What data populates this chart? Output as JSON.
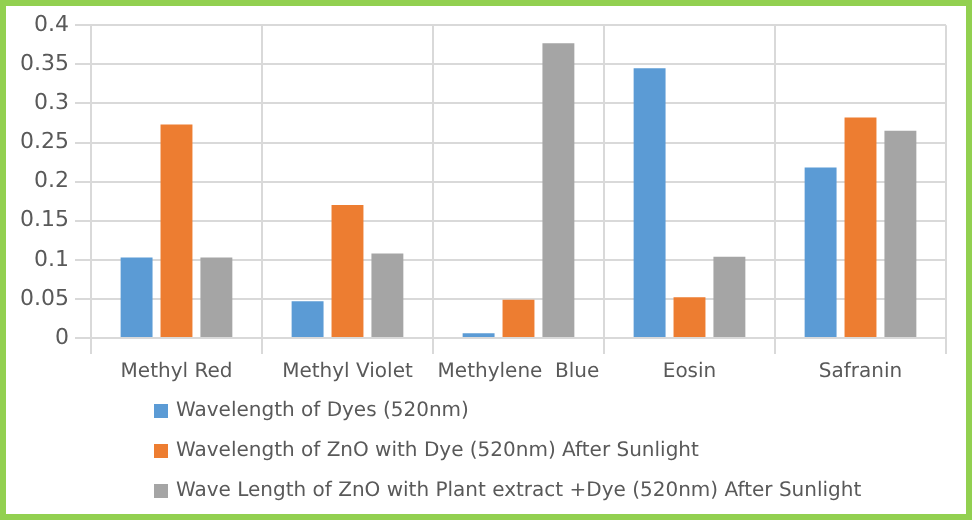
{
  "chart_data": {
    "type": "bar",
    "categories": [
      "Methyl Red",
      "Methyl Violet",
      "Methylene  Blue",
      "Eosin",
      "Safranin"
    ],
    "series": [
      {
        "name": "Wavelength of Dyes (520nm)",
        "color": "#5b9bd5",
        "values": [
          0.103,
          0.047,
          0.006,
          0.345,
          0.218
        ]
      },
      {
        "name": "Wavelength of ZnO with Dye (520nm) After Sunlight",
        "color": "#ed7d31",
        "values": [
          0.273,
          0.17,
          0.049,
          0.052,
          0.282
        ]
      },
      {
        "name": "Wave Length of ZnO with Plant extract +Dye (520nm) After Sunlight",
        "color": "#a5a5a5",
        "values": [
          0.103,
          0.108,
          0.377,
          0.104,
          0.265
        ]
      }
    ],
    "ylim": [
      0,
      0.4
    ],
    "yticks": [
      0,
      0.05,
      0.1,
      0.15,
      0.2,
      0.25,
      0.3,
      0.35,
      0.4
    ],
    "grid": true,
    "legend": "bottom"
  }
}
